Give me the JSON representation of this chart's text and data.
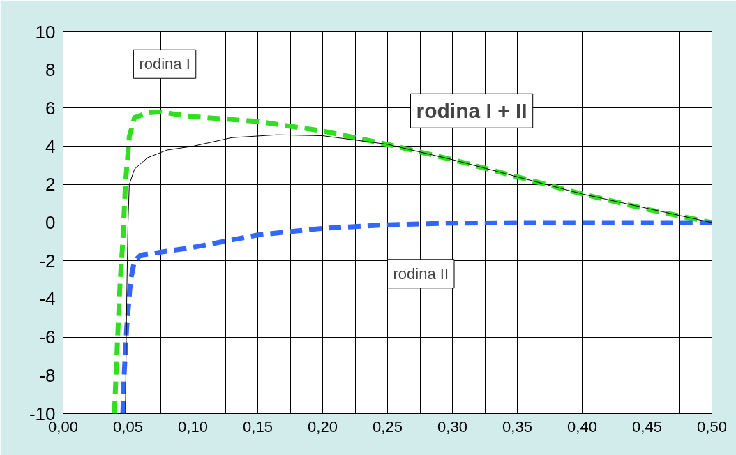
{
  "chart_data": {
    "type": "line",
    "xlim": [
      0,
      0.5
    ],
    "ylim": [
      -10,
      10
    ],
    "xticks": [
      {
        "value": 0,
        "label": "0,00"
      },
      {
        "value": 0.025,
        "label": null
      },
      {
        "value": 0.05,
        "label": "0,05"
      },
      {
        "value": 0.075,
        "label": null
      },
      {
        "value": 0.1,
        "label": "0,10"
      },
      {
        "value": 0.125,
        "label": null
      },
      {
        "value": 0.15,
        "label": "0,15"
      },
      {
        "value": 0.175,
        "label": null
      },
      {
        "value": 0.2,
        "label": "0,20"
      },
      {
        "value": 0.225,
        "label": null
      },
      {
        "value": 0.25,
        "label": "0,25"
      },
      {
        "value": 0.275,
        "label": null
      },
      {
        "value": 0.3,
        "label": "0,30"
      },
      {
        "value": 0.325,
        "label": null
      },
      {
        "value": 0.35,
        "label": "0,35"
      },
      {
        "value": 0.375,
        "label": null
      },
      {
        "value": 0.4,
        "label": "0,40"
      },
      {
        "value": 0.425,
        "label": null
      },
      {
        "value": 0.45,
        "label": "0,45"
      },
      {
        "value": 0.475,
        "label": null
      },
      {
        "value": 0.5,
        "label": "0,50"
      }
    ],
    "yticks": [
      -10,
      -8,
      -6,
      -4,
      -2,
      0,
      2,
      4,
      6,
      8,
      10
    ],
    "grid": true,
    "marker": "none",
    "series": [
      {
        "name": "rodina I",
        "color": "#33dd22",
        "line_style": "dashed",
        "x": [
          0.0395,
          0.042,
          0.044,
          0.046,
          0.048,
          0.051,
          0.055,
          0.065,
          0.075,
          0.1,
          0.15,
          0.2,
          0.25,
          0.3,
          0.35,
          0.4,
          0.45,
          0.5
        ],
        "values": [
          -10,
          -6,
          -3,
          -1,
          2,
          4.5,
          5.5,
          5.75,
          5.8,
          5.55,
          5.3,
          4.8,
          4.1,
          3.3,
          2.4,
          1.5,
          0.7,
          0
        ]
      },
      {
        "name": "rodina II",
        "color": "#3366ff",
        "line_style": "dashed",
        "x": [
          0.046,
          0.047,
          0.049,
          0.052,
          0.055,
          0.06,
          0.08,
          0.1,
          0.15,
          0.2,
          0.25,
          0.3,
          0.35,
          0.4,
          0.5
        ],
        "values": [
          -10,
          -8,
          -5.5,
          -3,
          -2,
          -1.7,
          -1.5,
          -1.3,
          -0.65,
          -0.3,
          -0.12,
          -0.03,
          0,
          0,
          0
        ]
      },
      {
        "name": "rodina I + II",
        "color": "#000000",
        "line_style": "solid",
        "x": [
          0.048,
          0.049,
          0.05,
          0.051,
          0.055,
          0.065,
          0.08,
          0.1,
          0.13,
          0.165,
          0.2,
          0.25,
          0.3,
          0.35,
          0.4,
          0.45,
          0.5
        ],
        "values": [
          -10,
          -4,
          0,
          2,
          2.8,
          3.4,
          3.8,
          4.0,
          4.45,
          4.6,
          4.55,
          4.1,
          3.3,
          2.4,
          1.5,
          0.75,
          0
        ]
      }
    ]
  }
}
